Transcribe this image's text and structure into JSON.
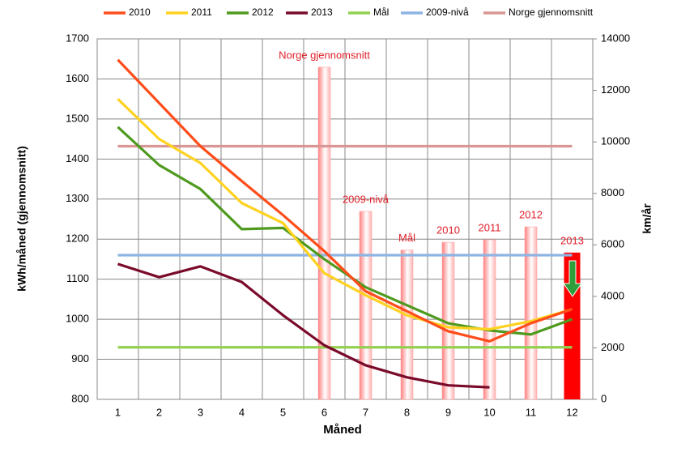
{
  "chart_data": {
    "type": "line",
    "categories": [
      "1",
      "2",
      "3",
      "4",
      "5",
      "6",
      "7",
      "8",
      "9",
      "10",
      "11",
      "12"
    ],
    "x_label": "Måned",
    "y_label": "kWh/måned  (gjennomsnitt)",
    "y2_label": "km/år",
    "ylim": [
      800,
      1700
    ],
    "yticks": [
      800,
      900,
      1000,
      1100,
      1200,
      1300,
      1400,
      1500,
      1600,
      1700
    ],
    "y2lim": [
      0,
      14000
    ],
    "y2ticks": [
      0,
      2000,
      4000,
      6000,
      8000,
      10000,
      12000,
      14000
    ],
    "grid": true,
    "series": [
      {
        "name": "2010",
        "color": "#ff4d1a",
        "values": [
          1648,
          1540,
          1432,
          1345,
          1260,
          1170,
          1070,
          1020,
          970,
          945,
          990,
          1025
        ]
      },
      {
        "name": "2011",
        "color": "#ffd21f",
        "values": [
          1550,
          1450,
          1390,
          1290,
          1240,
          1115,
          1060,
          1010,
          980,
          975,
          995,
          1025
        ]
      },
      {
        "name": "2012",
        "color": "#4e9a1e",
        "values": [
          1480,
          1385,
          1325,
          1225,
          1228,
          1150,
          1080,
          1035,
          990,
          972,
          962,
          1000
        ]
      },
      {
        "name": "2013",
        "color": "#7a0a2a",
        "values": [
          1138,
          1105,
          1132,
          1093,
          1010,
          935,
          885,
          855,
          835,
          830,
          null,
          null
        ]
      },
      {
        "name": "Mål",
        "color": "#92d050",
        "values": [
          930,
          930,
          930,
          930,
          930,
          930,
          930,
          930,
          930,
          930,
          930,
          930
        ]
      },
      {
        "name": "2009-nivå",
        "color": "#8eb4e3",
        "values": [
          1160,
          1160,
          1160,
          1160,
          1160,
          1160,
          1160,
          1160,
          1160,
          1160,
          1160,
          1160
        ]
      },
      {
        "name": "Norge gjennomsnitt",
        "color": "#d99694",
        "values": [
          1432,
          1432,
          1432,
          1432,
          1432,
          1432,
          1432,
          1432,
          1432,
          1432,
          1432,
          1432
        ]
      }
    ],
    "bars": {
      "axis": "y2",
      "color": "#ff9a9a",
      "highlight_color": "#ff0000",
      "values": [
        null,
        null,
        null,
        null,
        null,
        12900,
        7300,
        5800,
        6100,
        6200,
        6700,
        5700
      ],
      "labels": [
        null,
        null,
        null,
        null,
        null,
        "Norge gjennomsnitt",
        "2009-nivå",
        "Mål",
        "2010",
        "2011",
        "2012",
        "2013"
      ]
    }
  }
}
